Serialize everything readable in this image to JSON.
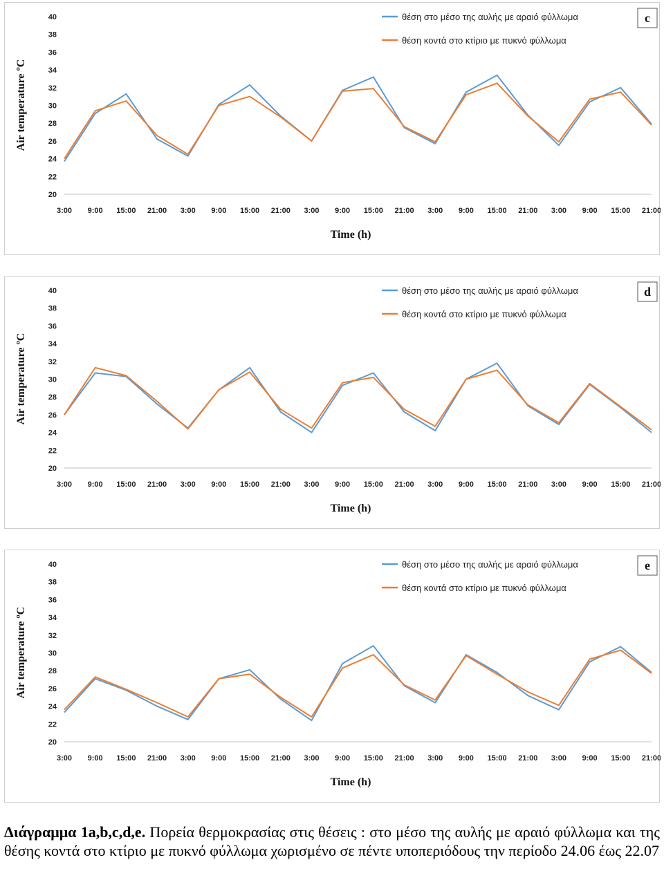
{
  "chart_data": [
    {
      "type": "line",
      "panel_label": "c",
      "xlabel": "Time (h)",
      "ylabel": "Air temperature ºC",
      "ylim": [
        20,
        40
      ],
      "yticks": [
        20,
        22,
        24,
        26,
        28,
        30,
        32,
        34,
        36,
        38,
        40
      ],
      "categories": [
        "3:00",
        "9:00",
        "15:00",
        "21:00",
        "3:00",
        "9:00",
        "15:00",
        "21:00",
        "3:00",
        "9:00",
        "15:00",
        "21:00",
        "3:00",
        "9:00",
        "15:00",
        "21:00",
        "3:00",
        "9:00",
        "15:00",
        "21:00"
      ],
      "legend_position": "top-right",
      "series": [
        {
          "name": "θέση στο μέσο της αυλής με αραιό φύλλωμα",
          "color": "#5b9bd5",
          "values": [
            23.7,
            29.1,
            31.3,
            26.2,
            24.3,
            30.1,
            32.3,
            28.8,
            26.0,
            31.7,
            33.2,
            27.5,
            25.7,
            31.5,
            33.4,
            28.9,
            25.5,
            30.4,
            32.0,
            27.9
          ]
        },
        {
          "name": "θέση κοντά στο κτίριο με πυκνό φύλλωμα",
          "color": "#ed7d31",
          "values": [
            24.0,
            29.4,
            30.5,
            26.6,
            24.5,
            30.0,
            31.0,
            28.7,
            26.0,
            31.6,
            31.9,
            27.6,
            25.9,
            31.2,
            32.5,
            28.8,
            25.9,
            30.7,
            31.5,
            27.8
          ]
        }
      ]
    },
    {
      "type": "line",
      "panel_label": "d",
      "xlabel": "Time (h)",
      "ylabel": "Air temperature ºC",
      "ylim": [
        20,
        40
      ],
      "yticks": [
        20,
        22,
        24,
        26,
        28,
        30,
        32,
        34,
        36,
        38,
        40
      ],
      "categories": [
        "3:00",
        "9:00",
        "15:00",
        "21:00",
        "3:00",
        "9:00",
        "15:00",
        "21:00",
        "3:00",
        "9:00",
        "15:00",
        "21:00",
        "3:00",
        "9:00",
        "15:00",
        "21:00",
        "3:00",
        "9:00",
        "15:00",
        "21:00"
      ],
      "legend_position": "top-right",
      "series": [
        {
          "name": "θέση στο μέσο της αυλής με αραιό φύλλωμα",
          "color": "#5b9bd5",
          "values": [
            26.0,
            30.7,
            30.3,
            27.2,
            24.5,
            28.8,
            31.3,
            26.3,
            24.0,
            29.3,
            30.7,
            26.3,
            24.2,
            30.0,
            31.8,
            27.0,
            24.9,
            29.4,
            26.8,
            24.0
          ]
        },
        {
          "name": "θέση κοντά στο κτίριο με πυκνό φύλλωμα",
          "color": "#ed7d31",
          "values": [
            26.0,
            31.3,
            30.4,
            27.5,
            24.4,
            28.8,
            30.8,
            26.6,
            24.5,
            29.6,
            30.2,
            26.6,
            24.7,
            30.0,
            31.0,
            27.1,
            25.1,
            29.5,
            26.9,
            24.3
          ]
        }
      ]
    },
    {
      "type": "line",
      "panel_label": "e",
      "xlabel": "Time (h)",
      "ylabel": "Air temperature ºC",
      "ylim": [
        20,
        40
      ],
      "yticks": [
        20,
        22,
        24,
        26,
        28,
        30,
        32,
        34,
        36,
        38,
        40
      ],
      "categories": [
        "3:00",
        "9:00",
        "15:00",
        "21:00",
        "3:00",
        "9:00",
        "15:00",
        "21:00",
        "3:00",
        "9:00",
        "15:00",
        "21:00",
        "3:00",
        "9:00",
        "15:00",
        "21:00",
        "3:00",
        "9:00",
        "15:00",
        "21:00"
      ],
      "legend_position": "top-right",
      "series": [
        {
          "name": "θέση στο μέσο της αυλής με αραιό φύλλωμα",
          "color": "#5b9bd5",
          "values": [
            23.3,
            27.1,
            25.8,
            24.0,
            22.5,
            27.1,
            28.1,
            24.8,
            22.4,
            28.8,
            30.8,
            26.3,
            24.4,
            29.8,
            27.8,
            25.2,
            23.6,
            29.0,
            30.7,
            27.8
          ]
        },
        {
          "name": "θέση κοντά στο κτίριο με πυκνό φύλλωμα",
          "color": "#ed7d31",
          "values": [
            23.6,
            27.3,
            25.9,
            24.4,
            22.8,
            27.1,
            27.6,
            25.0,
            22.8,
            28.3,
            29.8,
            26.4,
            24.7,
            29.7,
            27.6,
            25.6,
            24.1,
            29.3,
            30.3,
            27.7
          ]
        }
      ]
    }
  ],
  "caption": {
    "bold": "Διάγραμμα 1a,b,c,d,e.",
    "text": " Πορεία θερμοκρασίας στις θέσεις : στο μέσο της αυλής με αραιό φύλλωμα και της θέσης κοντά στο κτίριο με πυκνό φύλλωμα χωρισμένο σε πέντε υποπεριόδους την περίοδο 24.06 έως 22.07"
  }
}
